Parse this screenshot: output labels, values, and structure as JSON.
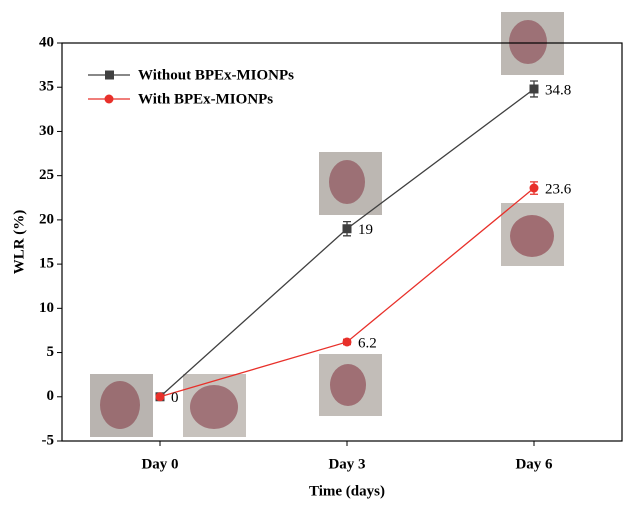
{
  "chart_data": {
    "type": "line",
    "x_label": "Time (days)",
    "y_label": "WLR (%)",
    "categories": [
      "Day 0",
      "Day 3",
      "Day 6"
    ],
    "series": [
      {
        "name": "Without BPEx-MIONPs",
        "color": "#404040",
        "marker": "square",
        "values": [
          0,
          19,
          34.8
        ],
        "errors": [
          0.3,
          0.8,
          0.9
        ],
        "show_labels": [
          false,
          true,
          true
        ]
      },
      {
        "name": "With BPEx-MIONPs",
        "color": "#e8302a",
        "marker": "circle",
        "values": [
          0,
          6.2,
          23.6
        ],
        "errors": [
          0.2,
          0.3,
          0.7
        ],
        "show_labels": [
          true,
          true,
          true
        ]
      }
    ],
    "ylim": [
      -5,
      40
    ],
    "yticks": [
      -5,
      0,
      5,
      10,
      15,
      20,
      25,
      30,
      35,
      40
    ],
    "legend": "upper left"
  }
}
